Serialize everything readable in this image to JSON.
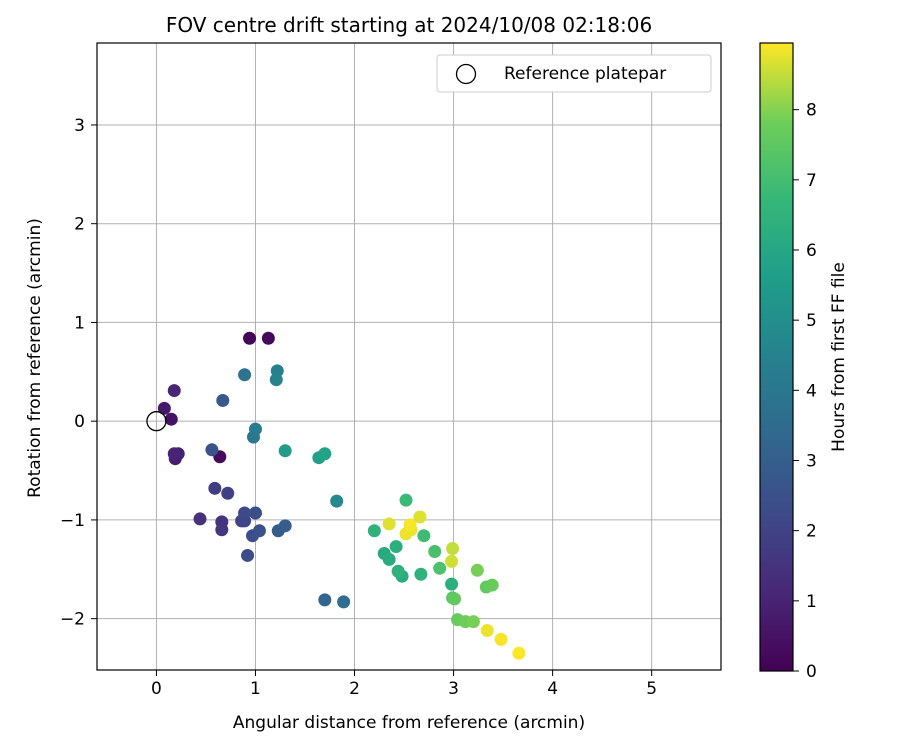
{
  "chart_data": {
    "type": "scatter",
    "title": "FOV centre drift starting at 2024/10/08 02:18:06",
    "xlabel": "Angular distance from reference (arcmin)",
    "ylabel": "Rotation from reference (arcmin)",
    "xlim": [
      -0.6,
      5.7
    ],
    "ylim": [
      -2.52,
      3.83
    ],
    "xticks": [
      0,
      1,
      2,
      3,
      4,
      5
    ],
    "yticks": [
      -2,
      -1,
      0,
      1,
      2,
      3
    ],
    "grid": true,
    "legend": {
      "position": "top-right",
      "entries": [
        "Reference platepar"
      ]
    },
    "reference_point": {
      "x": 0,
      "y": 0
    },
    "colorbar": {
      "label": "Hours from first FF file",
      "min": 0,
      "max": 8.95,
      "ticks": [
        0,
        1,
        2,
        3,
        4,
        5,
        6,
        7,
        8
      ],
      "colormap": "viridis"
    },
    "points": [
      {
        "x": 0.94,
        "y": 0.84,
        "c": 0.1
      },
      {
        "x": 1.13,
        "y": 0.84,
        "c": 0.2
      },
      {
        "x": 0.64,
        "y": -0.36,
        "c": 0.3
      },
      {
        "x": 0.15,
        "y": 0.02,
        "c": 0.5
      },
      {
        "x": 0.08,
        "y": 0.13,
        "c": 0.7
      },
      {
        "x": 0.19,
        "y": -0.38,
        "c": 0.8
      },
      {
        "x": 0.22,
        "y": -0.33,
        "c": 0.9
      },
      {
        "x": 0.18,
        "y": -0.33,
        "c": 1.0
      },
      {
        "x": 0.18,
        "y": 0.31,
        "c": 1.1
      },
      {
        "x": 0.44,
        "y": -0.99,
        "c": 1.4
      },
      {
        "x": 0.66,
        "y": -1.02,
        "c": 1.5
      },
      {
        "x": 0.66,
        "y": -1.1,
        "c": 1.6
      },
      {
        "x": 0.59,
        "y": -0.68,
        "c": 1.8
      },
      {
        "x": 0.72,
        "y": -0.73,
        "c": 1.9
      },
      {
        "x": 0.86,
        "y": -1.01,
        "c": 2.0
      },
      {
        "x": 0.89,
        "y": -1.01,
        "c": 2.1
      },
      {
        "x": 0.89,
        "y": -0.93,
        "c": 2.2
      },
      {
        "x": 0.92,
        "y": -1.36,
        "c": 2.3
      },
      {
        "x": 0.97,
        "y": -1.16,
        "c": 2.4
      },
      {
        "x": 1.0,
        "y": -0.93,
        "c": 2.4
      },
      {
        "x": 1.04,
        "y": -1.11,
        "c": 2.5
      },
      {
        "x": 0.56,
        "y": -0.29,
        "c": 2.6
      },
      {
        "x": 0.67,
        "y": 0.21,
        "c": 2.8
      },
      {
        "x": 1.23,
        "y": -1.11,
        "c": 2.9
      },
      {
        "x": 1.3,
        "y": -1.06,
        "c": 3.0
      },
      {
        "x": 1.7,
        "y": -1.81,
        "c": 3.3
      },
      {
        "x": 1.89,
        "y": -1.83,
        "c": 3.6
      },
      {
        "x": 0.89,
        "y": 0.47,
        "c": 3.8
      },
      {
        "x": 0.98,
        "y": -0.16,
        "c": 4.0
      },
      {
        "x": 1.0,
        "y": -0.08,
        "c": 4.2
      },
      {
        "x": 1.22,
        "y": 0.51,
        "c": 4.4
      },
      {
        "x": 1.21,
        "y": 0.42,
        "c": 4.5
      },
      {
        "x": 1.82,
        "y": -0.81,
        "c": 4.7
      },
      {
        "x": 1.3,
        "y": -0.3,
        "c": 5.5
      },
      {
        "x": 1.64,
        "y": -0.37,
        "c": 5.7
      },
      {
        "x": 1.7,
        "y": -0.33,
        "c": 5.8
      },
      {
        "x": 2.2,
        "y": -1.11,
        "c": 6.4
      },
      {
        "x": 2.3,
        "y": -1.34,
        "c": 6.1
      },
      {
        "x": 2.35,
        "y": -1.4,
        "c": 6.2
      },
      {
        "x": 2.42,
        "y": -1.27,
        "c": 6.3
      },
      {
        "x": 2.44,
        "y": -1.52,
        "c": 6.4
      },
      {
        "x": 2.48,
        "y": -1.57,
        "c": 6.2
      },
      {
        "x": 2.52,
        "y": -0.8,
        "c": 6.8
      },
      {
        "x": 2.67,
        "y": -1.55,
        "c": 6.5
      },
      {
        "x": 2.7,
        "y": -1.16,
        "c": 6.9
      },
      {
        "x": 2.81,
        "y": -1.32,
        "c": 7.1
      },
      {
        "x": 2.86,
        "y": -1.49,
        "c": 7.2
      },
      {
        "x": 2.98,
        "y": -1.65,
        "c": 6.3
      },
      {
        "x": 2.99,
        "y": -1.79,
        "c": 7.4
      },
      {
        "x": 3.01,
        "y": -1.8,
        "c": 7.6
      },
      {
        "x": 3.04,
        "y": -2.01,
        "c": 7.7
      },
      {
        "x": 3.12,
        "y": -2.03,
        "c": 7.8
      },
      {
        "x": 3.2,
        "y": -2.03,
        "c": 7.9
      },
      {
        "x": 3.24,
        "y": -1.51,
        "c": 7.9
      },
      {
        "x": 3.33,
        "y": -1.68,
        "c": 7.6
      },
      {
        "x": 3.39,
        "y": -1.66,
        "c": 7.7
      },
      {
        "x": 2.35,
        "y": -1.04,
        "c": 8.7
      },
      {
        "x": 2.52,
        "y": -1.14,
        "c": 8.8
      },
      {
        "x": 2.56,
        "y": -1.05,
        "c": 8.9
      },
      {
        "x": 2.57,
        "y": -1.1,
        "c": 8.8
      },
      {
        "x": 2.66,
        "y": -0.97,
        "c": 8.7
      },
      {
        "x": 2.99,
        "y": -1.29,
        "c": 8.5
      },
      {
        "x": 2.98,
        "y": -1.42,
        "c": 8.6
      },
      {
        "x": 3.34,
        "y": -2.12,
        "c": 8.8
      },
      {
        "x": 3.48,
        "y": -2.21,
        "c": 8.9
      },
      {
        "x": 3.66,
        "y": -2.35,
        "c": 8.95
      }
    ]
  }
}
